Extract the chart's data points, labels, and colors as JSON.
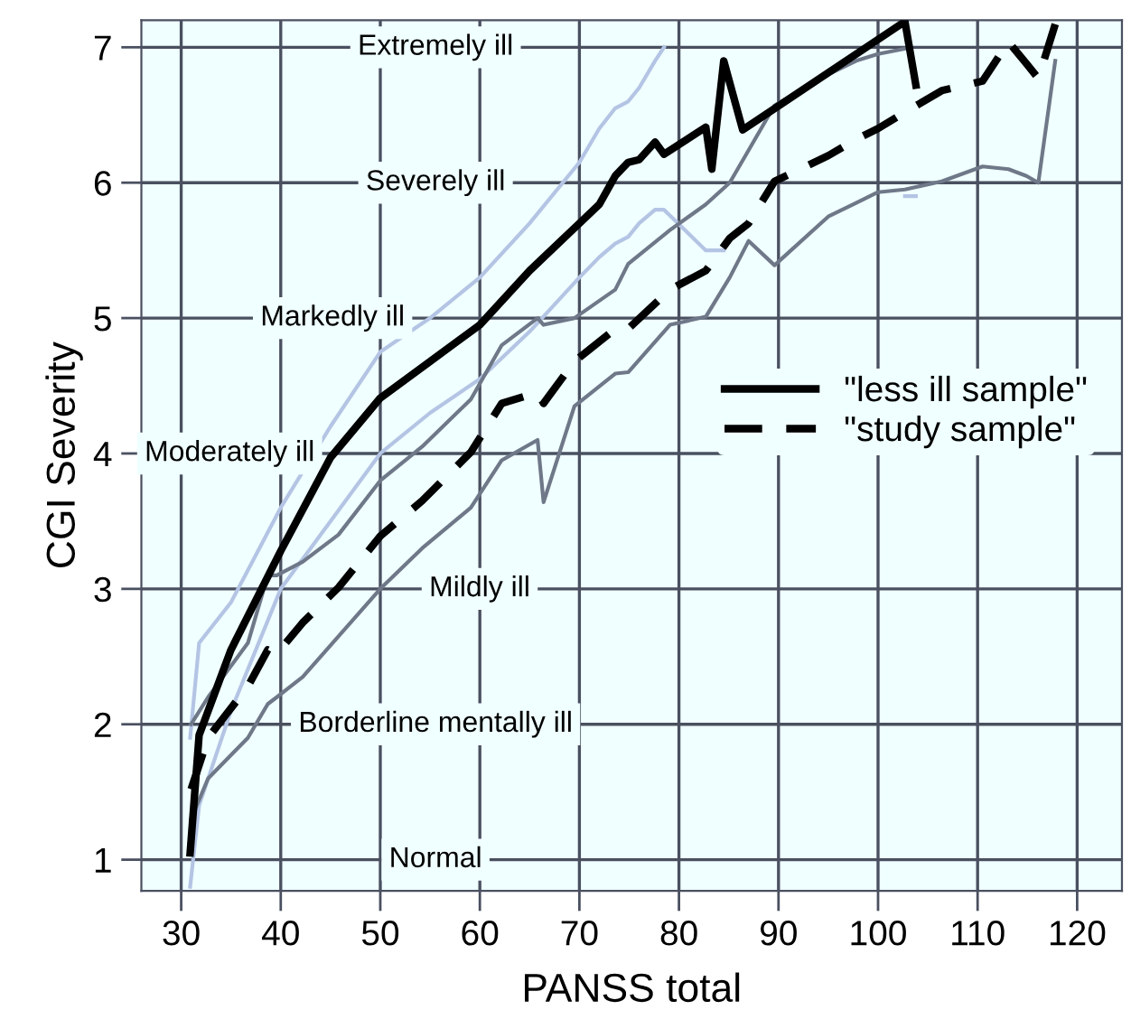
{
  "chart_data": {
    "type": "line",
    "xlabel": "PANSS total",
    "ylabel": "CGI Severity",
    "xlim": [
      26,
      124.5
    ],
    "ylim": [
      0.77,
      7.2
    ],
    "xticks": [
      30,
      40,
      50,
      60,
      70,
      80,
      90,
      100,
      110,
      120
    ],
    "yticks": [
      1,
      2,
      3,
      4,
      5,
      6,
      7
    ],
    "grid": true,
    "legend": "right",
    "annotations": [
      "Normal",
      "Borderline mentally ill",
      "Mildly ill",
      "Moderately ill",
      "Markedly ill",
      "Severely ill",
      "Extremely ill"
    ],
    "series": [
      {
        "color": "#b4c4e4",
        "x": [
          30.9,
          31.8,
          35,
          40,
          45,
          50,
          55,
          60,
          65,
          70,
          72,
          73.6,
          74.9,
          76,
          77.6,
          78.5,
          82.7,
          83.3,
          84.5,
          86.4,
          102.7,
          103.8
        ],
        "values": [
          0.8,
          1.4,
          2.1,
          3.0,
          3.5,
          4.0,
          4.3,
          4.55,
          4.9,
          5.3,
          5.45,
          5.55,
          5.6,
          5.7,
          5.8,
          5.8,
          5.5,
          5.5,
          5.5,
          null,
          5.9,
          5.9
        ]
      },
      {
        "color": "#b4c4e4",
        "x": [
          30.9,
          31.8,
          35,
          40,
          45,
          50,
          55,
          60,
          65,
          70,
          72,
          73.6,
          74.9,
          76,
          77.6,
          78.5
        ],
        "values": [
          1.9,
          2.6,
          2.9,
          3.6,
          4.2,
          4.75,
          5.0,
          5.3,
          5.7,
          6.15,
          6.4,
          6.55,
          6.6,
          6.7,
          6.9,
          7.0
        ]
      },
      {
        "color": "#6e7888",
        "x": [
          31,
          32.7,
          36.7,
          38.7,
          39.6,
          42.2,
          45.8,
          50,
          54.2,
          59.1,
          62.2,
          65.8,
          66.4,
          69.5,
          73.6,
          74.9,
          79.1,
          82.7,
          85.1,
          87,
          89.6,
          95,
          97.8,
          100,
          102.7,
          106.4,
          110.5,
          113.1,
          114.9,
          116.1,
          117.8
        ],
        "values": [
          1.3,
          1.6,
          1.9,
          2.15,
          2.2,
          2.35,
          2.65,
          3.0,
          3.3,
          3.6,
          3.95,
          4.1,
          3.64,
          4.35,
          4.59,
          4.6,
          4.95,
          5.01,
          5.3,
          5.57,
          5.39,
          5.75,
          5.85,
          5.93,
          5.95,
          6.01,
          6.12,
          6.1,
          6.05,
          6.0,
          6.9
        ]
      },
      {
        "color": "#6e7888",
        "x": [
          31,
          32.7,
          36.7,
          38.7,
          39.6,
          42.2,
          45.8,
          50,
          54.2,
          59.1,
          62.2,
          65.8,
          66.4,
          69.5,
          73.6,
          74.9,
          79.1,
          82.7,
          85.1,
          87,
          89.6,
          95,
          97.8,
          100,
          102.7
        ],
        "values": [
          2.0,
          2.2,
          2.6,
          3.1,
          3.1,
          3.2,
          3.4,
          3.8,
          4.05,
          4.4,
          4.8,
          5.0,
          4.95,
          5.0,
          5.21,
          5.4,
          5.65,
          5.84,
          6.0,
          6.24,
          6.57,
          6.8,
          6.9,
          6.95,
          6.99
        ]
      },
      {
        "name": "\"less ill sample\"",
        "color": "#000000",
        "line_style": "solid",
        "x": [
          30.9,
          31.8,
          35,
          40,
          45,
          50,
          55,
          60,
          65,
          70,
          72,
          73.6,
          74.9,
          76,
          77.6,
          78.5,
          82.7,
          83.3,
          84.5,
          86.4,
          102.7,
          103.8
        ],
        "values": [
          1.05,
          1.92,
          2.55,
          3.28,
          3.97,
          4.41,
          4.68,
          4.95,
          5.35,
          5.7,
          5.84,
          6.05,
          6.15,
          6.17,
          6.3,
          6.21,
          6.41,
          6.1,
          6.9,
          6.39,
          7.19,
          6.72
        ]
      },
      {
        "name": "\"study sample\"",
        "color": "#000000",
        "line_style": "dashed",
        "x": [
          31,
          32.7,
          36.7,
          38.7,
          39.6,
          42.2,
          45.8,
          50,
          54.2,
          59.1,
          62.2,
          65.8,
          66.4,
          69.5,
          73.6,
          74.9,
          79.1,
          82.7,
          85.1,
          87,
          89.6,
          95,
          97.8,
          100,
          102.7,
          106.4,
          110.5,
          113.1,
          114.9,
          116.1,
          117.8
        ],
        "values": [
          1.52,
          1.9,
          2.28,
          2.55,
          2.52,
          2.75,
          3.01,
          3.39,
          3.65,
          4.01,
          4.37,
          4.45,
          4.37,
          4.68,
          4.92,
          4.92,
          5.21,
          5.35,
          5.59,
          5.7,
          6.01,
          6.2,
          6.32,
          6.4,
          6.52,
          6.68,
          6.75,
          7.04,
          6.88,
          6.77,
          7.17
        ]
      }
    ]
  }
}
